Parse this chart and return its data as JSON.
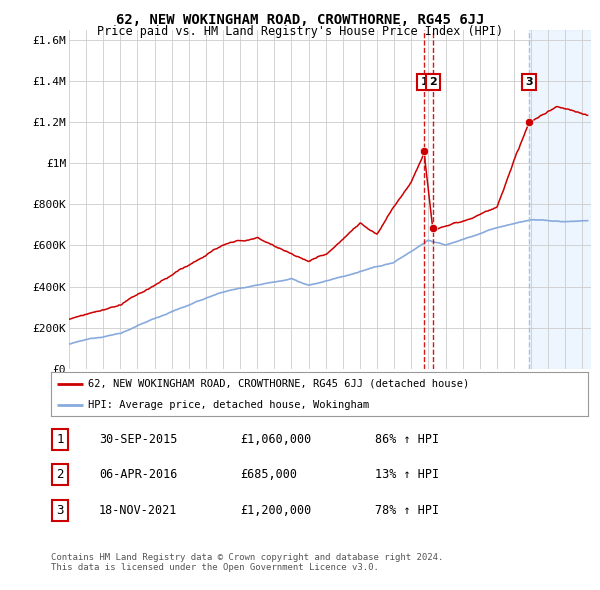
{
  "title": "62, NEW WOKINGHAM ROAD, CROWTHORNE, RG45 6JJ",
  "subtitle": "Price paid vs. HM Land Registry's House Price Index (HPI)",
  "ylabel_ticks": [
    0,
    200000,
    400000,
    600000,
    800000,
    1000000,
    1200000,
    1400000,
    1600000
  ],
  "ylabel_labels": [
    "£0",
    "£200K",
    "£400K",
    "£600K",
    "£800K",
    "£1M",
    "£1.2M",
    "£1.4M",
    "£1.6M"
  ],
  "ylim": [
    0,
    1650000
  ],
  "xlim_start": 1995.0,
  "xlim_end": 2025.5,
  "red_color": "#cc0000",
  "blue_color": "#88aadd",
  "sale1_date": 2015.75,
  "sale1_price": 1060000,
  "sale1_label": "30-SEP-2015",
  "sale1_amount": "£1,060,000",
  "sale1_hpi": "86% ↑ HPI",
  "sale2_date": 2016.27,
  "sale2_price": 685000,
  "sale2_label": "06-APR-2016",
  "sale2_amount": "£685,000",
  "sale2_hpi": "13% ↑ HPI",
  "sale3_date": 2021.88,
  "sale3_price": 1200000,
  "sale3_label": "18-NOV-2021",
  "sale3_amount": "£1,200,000",
  "sale3_hpi": "78% ↑ HPI",
  "legend_line1": "62, NEW WOKINGHAM ROAD, CROWTHORNE, RG45 6JJ (detached house)",
  "legend_line2": "HPI: Average price, detached house, Wokingham",
  "footer1": "Contains HM Land Registry data © Crown copyright and database right 2024.",
  "footer2": "This data is licensed under the Open Government Licence v3.0.",
  "background_color": "#ffffff",
  "grid_color": "#cccccc"
}
